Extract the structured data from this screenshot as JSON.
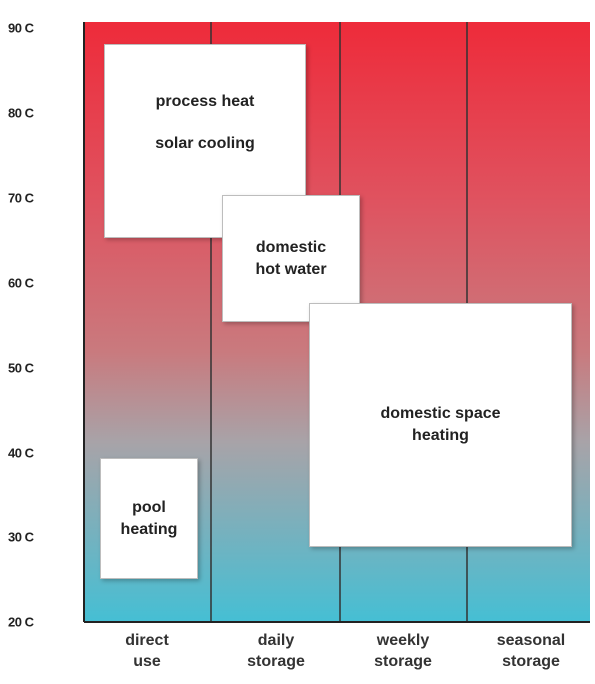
{
  "y_axis": {
    "ticks": [
      "90 C",
      "80 C",
      "70 C",
      "60 C",
      "50 C",
      "40 C",
      "30 C",
      "20 C"
    ]
  },
  "x_axis": {
    "categories": [
      {
        "line1": "direct",
        "line2": "use"
      },
      {
        "line1": "daily",
        "line2": "storage"
      },
      {
        "line1": "weekly",
        "line2": "storage"
      },
      {
        "line1": "seasonal",
        "line2": "storage"
      }
    ]
  },
  "applications": {
    "process": {
      "line1": "process heat",
      "line2": "solar cooling"
    },
    "dhw": {
      "line1": "domestic",
      "line2": "hot water"
    },
    "space": {
      "line1": "domestic space",
      "line2": "heating"
    },
    "pool": {
      "line1": "pool",
      "line2": "heating"
    }
  },
  "colors": {
    "hot": "#ee2b3a",
    "mid": "#c97a7e",
    "cool": "#45bfd4"
  }
}
